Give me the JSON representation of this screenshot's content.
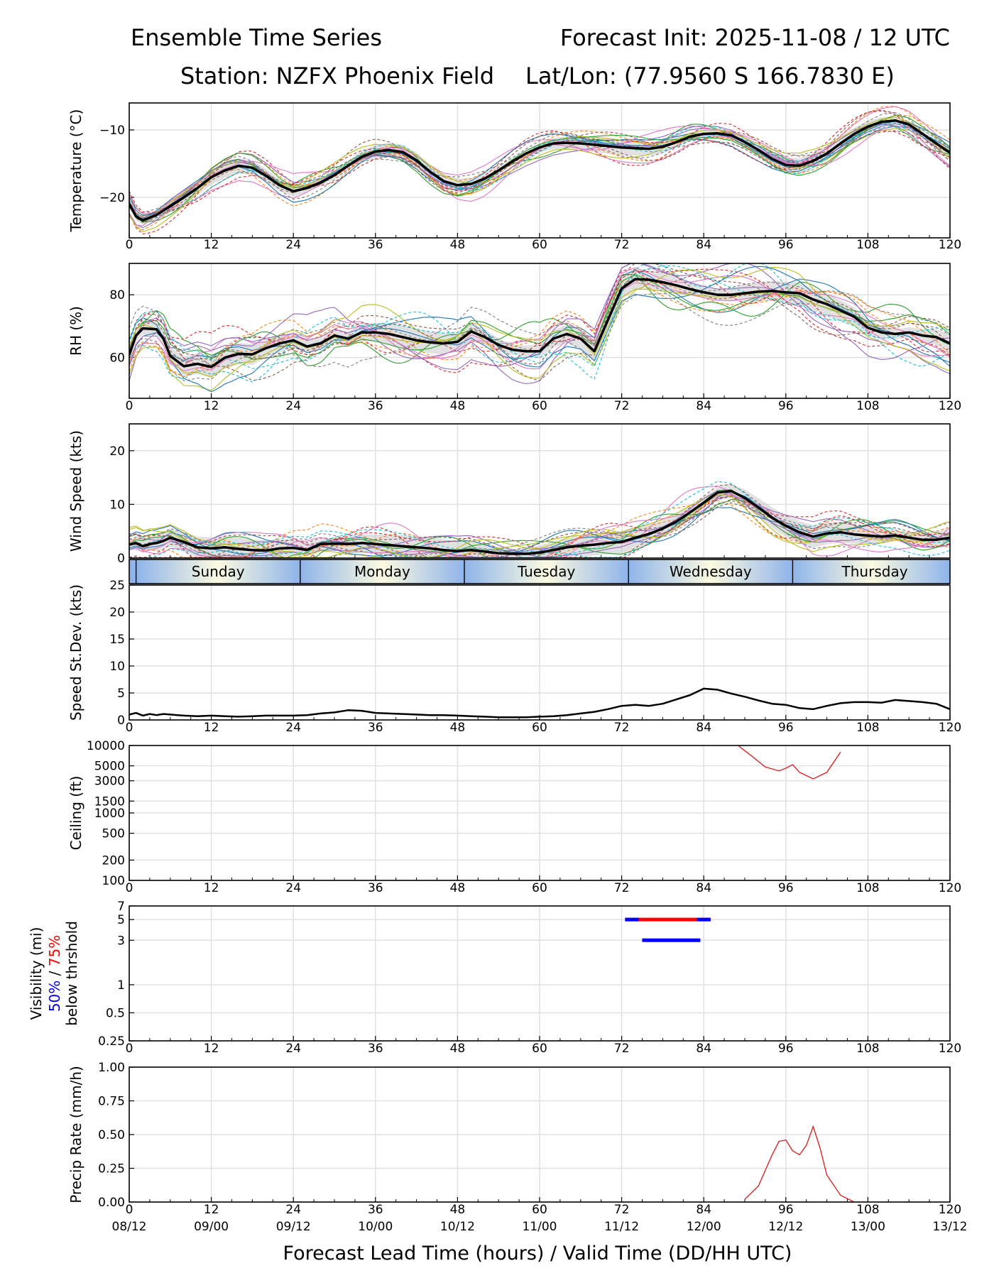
{
  "header": {
    "title_left": "Ensemble Time Series",
    "title_right": "Forecast Init: 2025-11-08 / 12 UTC",
    "station": "Station: NZFX Phoenix Field",
    "latlon": "Lat/Lon: (77.9560 S 166.7830 E)"
  },
  "x_axis": {
    "label": "Forecast Lead Time (hours) / Valid Time (DD/HH UTC)",
    "xlim": [
      0,
      120
    ],
    "hour_ticks": [
      "0",
      "12",
      "24",
      "36",
      "48",
      "60",
      "72",
      "84",
      "96",
      "108",
      "120"
    ],
    "valid_ticks": [
      "08/12",
      "09/00",
      "09/12",
      "10/00",
      "10/12",
      "11/00",
      "11/12",
      "12/00",
      "12/12",
      "13/00",
      "13/12"
    ]
  },
  "day_band": {
    "days": [
      "Sunday",
      "Monday",
      "Tuesday",
      "Wednesday",
      "Thursday"
    ],
    "boundaries_hours": [
      1,
      25,
      49,
      73,
      97
    ]
  },
  "colors": {
    "mean": "#000000",
    "spread": "#c8c8c8",
    "members": [
      "#1f77b4",
      "#ff7f0e",
      "#2ca02c",
      "#d62728",
      "#9467bd",
      "#8c564b",
      "#e377c2",
      "#7f7f7f",
      "#bcbd22",
      "#17becf"
    ],
    "vis_50": "#0000ff",
    "vis_75": "#ff0000"
  },
  "chart_data": [
    {
      "id": "temperature",
      "type": "line",
      "ylabel": "Temperature (°C)",
      "ylim": [
        -26,
        -6
      ],
      "yticks": [
        -20,
        -10
      ],
      "ytick_labels": [
        "−20",
        "−10"
      ],
      "mean_series": {
        "x": [
          0,
          1,
          2,
          4,
          6,
          8,
          10,
          12,
          14,
          16,
          18,
          20,
          22,
          24,
          26,
          28,
          30,
          32,
          34,
          36,
          38,
          40,
          42,
          44,
          46,
          48,
          50,
          52,
          54,
          56,
          58,
          60,
          62,
          64,
          66,
          68,
          70,
          72,
          74,
          76,
          78,
          80,
          82,
          84,
          86,
          88,
          90,
          92,
          94,
          96,
          98,
          100,
          102,
          104,
          106,
          108,
          110,
          112,
          114,
          116,
          118,
          120
        ],
        "y": [
          -21.0,
          -22.8,
          -23.4,
          -22.6,
          -21.3,
          -20.0,
          -18.6,
          -17.0,
          -16.0,
          -15.3,
          -15.6,
          -16.8,
          -18.2,
          -19.1,
          -18.6,
          -17.8,
          -16.7,
          -15.3,
          -14.0,
          -13.2,
          -13.0,
          -13.3,
          -14.5,
          -16.2,
          -17.6,
          -18.2,
          -18.0,
          -17.2,
          -16.0,
          -14.7,
          -13.5,
          -12.6,
          -12.0,
          -11.9,
          -12.0,
          -12.2,
          -12.4,
          -12.6,
          -12.7,
          -12.8,
          -12.5,
          -11.8,
          -11.0,
          -10.6,
          -10.5,
          -10.8,
          -11.8,
          -13.0,
          -14.3,
          -15.2,
          -15.3,
          -14.6,
          -13.5,
          -12.0,
          -10.6,
          -9.5,
          -8.8,
          -8.6,
          -9.2,
          -10.6,
          -12.0,
          -13.4
        ]
      },
      "spread_halfwidth": 0.8,
      "member_count": 20,
      "member_amplitude": 1.3
    },
    {
      "id": "rh",
      "type": "line",
      "ylabel": "RH (%)",
      "ylim": [
        47,
        90
      ],
      "yticks": [
        60,
        80
      ],
      "ytick_labels": [
        "60",
        "80"
      ],
      "mean_series": {
        "x": [
          0,
          1,
          2,
          4,
          5,
          6,
          8,
          10,
          12,
          14,
          16,
          18,
          20,
          22,
          24,
          26,
          28,
          30,
          32,
          34,
          36,
          38,
          40,
          42,
          44,
          46,
          48,
          50,
          52,
          54,
          56,
          58,
          60,
          62,
          64,
          66,
          68,
          70,
          72,
          74,
          76,
          78,
          80,
          82,
          84,
          86,
          88,
          90,
          92,
          94,
          96,
          98,
          100,
          102,
          104,
          106,
          108,
          110,
          112,
          114,
          116,
          118,
          120
        ],
        "y": [
          61.0,
          67.0,
          69.3,
          69.0,
          66.0,
          60.5,
          57.2,
          58.0,
          57.0,
          60.0,
          61.2,
          61.0,
          63.0,
          64.5,
          65.5,
          63.5,
          64.5,
          67.0,
          66.0,
          68.0,
          68.0,
          67.5,
          66.5,
          65.5,
          64.8,
          64.5,
          65.0,
          68.3,
          66.5,
          64.0,
          62.5,
          62.0,
          62.0,
          66.0,
          67.5,
          66.0,
          62.0,
          72.0,
          82.0,
          85.0,
          84.8,
          84.0,
          83.0,
          81.8,
          80.8,
          80.0,
          80.0,
          80.5,
          81.0,
          81.2,
          80.8,
          80.5,
          78.5,
          77.0,
          75.0,
          73.0,
          69.5,
          68.0,
          67.5,
          68.0,
          67.0,
          66.5,
          64.5
        ]
      },
      "spread_halfwidth": 2.5,
      "member_count": 20,
      "member_amplitude": 5.5
    },
    {
      "id": "wind_speed",
      "type": "line",
      "ylabel": "Wind Speed (kts)",
      "ylim": [
        0,
        25
      ],
      "yticks": [
        0,
        10,
        20
      ],
      "ytick_labels": [
        "0",
        "10",
        "20"
      ],
      "mean_series": {
        "x": [
          0,
          1,
          2,
          3,
          4,
          5,
          6,
          8,
          10,
          12,
          14,
          16,
          18,
          20,
          22,
          24,
          26,
          28,
          30,
          32,
          34,
          36,
          38,
          40,
          42,
          44,
          46,
          48,
          50,
          52,
          54,
          56,
          58,
          60,
          62,
          64,
          66,
          68,
          70,
          72,
          74,
          76,
          78,
          80,
          82,
          84,
          86,
          88,
          90,
          92,
          94,
          96,
          98,
          100,
          102,
          104,
          106,
          108,
          110,
          112,
          114,
          116,
          118,
          120
        ],
        "y": [
          2.5,
          2.8,
          2.2,
          2.6,
          2.8,
          3.2,
          3.8,
          3.0,
          2.0,
          1.8,
          2.0,
          1.7,
          1.5,
          1.4,
          1.8,
          1.9,
          1.5,
          2.6,
          2.7,
          2.6,
          2.8,
          2.6,
          2.4,
          2.2,
          2.0,
          1.8,
          1.5,
          1.3,
          1.5,
          1.2,
          0.9,
          0.8,
          0.8,
          1.0,
          1.5,
          2.0,
          2.3,
          2.5,
          2.8,
          3.0,
          3.8,
          4.5,
          5.5,
          6.8,
          8.5,
          10.3,
          12.2,
          12.5,
          11.2,
          9.4,
          7.5,
          6.0,
          4.8,
          4.0,
          4.6,
          4.8,
          4.4,
          4.2,
          4.0,
          4.2,
          3.8,
          3.4,
          3.4,
          3.8
        ]
      },
      "spread_halfwidth": 1.5,
      "member_count": 20,
      "member_amplitude": 2.0
    },
    {
      "id": "speed_stdev",
      "type": "line",
      "ylabel": "Speed St.Dev. (kts)",
      "ylim": [
        0,
        25
      ],
      "yticks": [
        0,
        5,
        10,
        15,
        20,
        25
      ],
      "ytick_labels": [
        "0",
        "5",
        "10",
        "15",
        "20",
        "25"
      ],
      "mean_series": {
        "x": [
          0,
          1,
          2,
          3,
          4,
          5,
          6,
          8,
          10,
          12,
          14,
          16,
          18,
          20,
          22,
          24,
          26,
          28,
          30,
          32,
          34,
          36,
          38,
          40,
          42,
          44,
          46,
          48,
          50,
          52,
          54,
          56,
          58,
          60,
          62,
          64,
          66,
          68,
          70,
          72,
          74,
          76,
          78,
          80,
          82,
          84,
          86,
          88,
          90,
          92,
          94,
          96,
          98,
          100,
          102,
          104,
          106,
          108,
          110,
          112,
          114,
          116,
          118,
          120
        ],
        "y": [
          1.0,
          1.3,
          0.8,
          1.1,
          0.9,
          1.1,
          1.0,
          0.8,
          0.7,
          0.8,
          0.7,
          0.6,
          0.7,
          0.8,
          0.8,
          0.8,
          0.9,
          1.2,
          1.4,
          1.8,
          1.7,
          1.3,
          1.2,
          1.1,
          1.0,
          0.9,
          0.9,
          0.8,
          0.7,
          0.6,
          0.5,
          0.5,
          0.5,
          0.6,
          0.7,
          0.9,
          1.2,
          1.5,
          2.0,
          2.6,
          2.8,
          2.6,
          3.0,
          3.8,
          4.6,
          5.8,
          5.6,
          4.9,
          4.3,
          3.6,
          3.0,
          2.8,
          2.2,
          2.0,
          2.6,
          3.1,
          3.3,
          3.3,
          3.2,
          3.7,
          3.5,
          3.3,
          3.0,
          2.0
        ]
      }
    },
    {
      "id": "ceiling",
      "type": "line",
      "ylabel": "Ceiling (ft)",
      "yscale": "log",
      "ylim": [
        100,
        10000
      ],
      "yticks": [
        100,
        200,
        500,
        1000,
        1500,
        3000,
        5000,
        10000
      ],
      "ytick_labels": [
        "100",
        "200",
        "500",
        "1000",
        "1500",
        "3000",
        "5000",
        "10000"
      ],
      "notable_member": {
        "x": [
          89,
          91,
          93,
          95,
          96,
          97,
          98,
          100,
          102,
          104
        ],
        "y": [
          10000,
          7000,
          4800,
          4200,
          4600,
          5200,
          4000,
          3200,
          4000,
          8000
        ]
      }
    },
    {
      "id": "visibility",
      "type": "line",
      "ylabel": "Visibility (mi)",
      "ylabel_prefix_50": "50%",
      "ylabel_sep": " / ",
      "ylabel_prefix_75": "75%",
      "ylabel_suffix": "below thrshold",
      "yscale": "log",
      "ylim": [
        0.25,
        7
      ],
      "yticks": [
        0.25,
        0.5,
        1,
        3,
        5,
        7
      ],
      "ytick_labels": [
        "0.25",
        "0.5",
        "1",
        "3",
        "5",
        "7"
      ],
      "threshold_75_pct": {
        "x": [
          72.5,
          85
        ],
        "y": [
          5,
          5
        ]
      },
      "threshold_50_pct_upper": {
        "x": [
          72.5,
          85
        ],
        "y": [
          5,
          5
        ]
      },
      "threshold_50_pct_lower": {
        "x": [
          75,
          83.5
        ],
        "y": [
          3,
          3
        ]
      }
    },
    {
      "id": "precip_rate",
      "type": "line",
      "ylabel": "Precip Rate (mm/h)",
      "ylim": [
        0,
        1.0
      ],
      "yticks": [
        0,
        0.25,
        0.5,
        0.75,
        1.0
      ],
      "ytick_labels": [
        "0.00",
        "0.25",
        "0.50",
        "0.75",
        "1.00"
      ],
      "notable_member": {
        "x": [
          90,
          92,
          94,
          95,
          96,
          97,
          98,
          99,
          100,
          101,
          102,
          104,
          106
        ],
        "y": [
          0.02,
          0.12,
          0.35,
          0.45,
          0.46,
          0.38,
          0.35,
          0.42,
          0.56,
          0.4,
          0.2,
          0.05,
          0.0
        ]
      }
    }
  ]
}
